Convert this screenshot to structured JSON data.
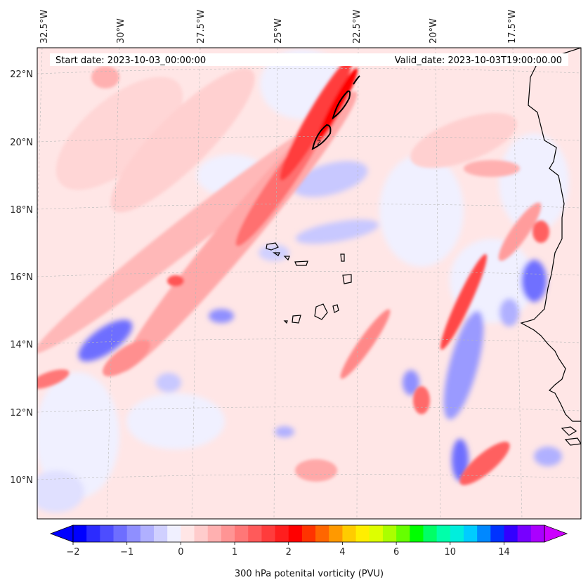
{
  "header": {
    "start_date": "Start date: 2023-10-03_00:00:00",
    "valid_date": "Valid_date: 2023-10-03T19:00:00.00"
  },
  "axes": {
    "lon_labels": [
      "32.5°W",
      "30°W",
      "27.5°W",
      "25°W",
      "22.5°W",
      "20°W",
      "17.5°W"
    ],
    "lat_labels": [
      "22°N",
      "20°N",
      "18°N",
      "16°N",
      "14°N",
      "12°N",
      "10°N"
    ]
  },
  "colorbar": {
    "label": "300 hPa potenital vorticity (PVU)",
    "tick_labels": [
      "−2",
      "−1",
      "0",
      "1",
      "2",
      "4",
      "6",
      "10",
      "14"
    ],
    "colors": [
      "#0000ff",
      "#2b2bff",
      "#4d4dff",
      "#6e6eff",
      "#8f8fff",
      "#b0b0ff",
      "#d0d0ff",
      "#f0f0ff",
      "#ffe6e6",
      "#ffcccc",
      "#ffb0b0",
      "#ff9494",
      "#ff7777",
      "#ff5a5a",
      "#ff3c3c",
      "#ff1e1e",
      "#ff0000",
      "#ff3300",
      "#ff6600",
      "#ff9900",
      "#ffcc00",
      "#ffee00",
      "#ddff00",
      "#aaff00",
      "#66ff00",
      "#00ff00",
      "#00ff66",
      "#00ffaa",
      "#00eedd",
      "#00ccff",
      "#0088ff",
      "#0033ff",
      "#3300ff",
      "#7700ff",
      "#aa00ff"
    ],
    "under_color": "#0000ff",
    "over_color": "#cc00ff"
  }
}
